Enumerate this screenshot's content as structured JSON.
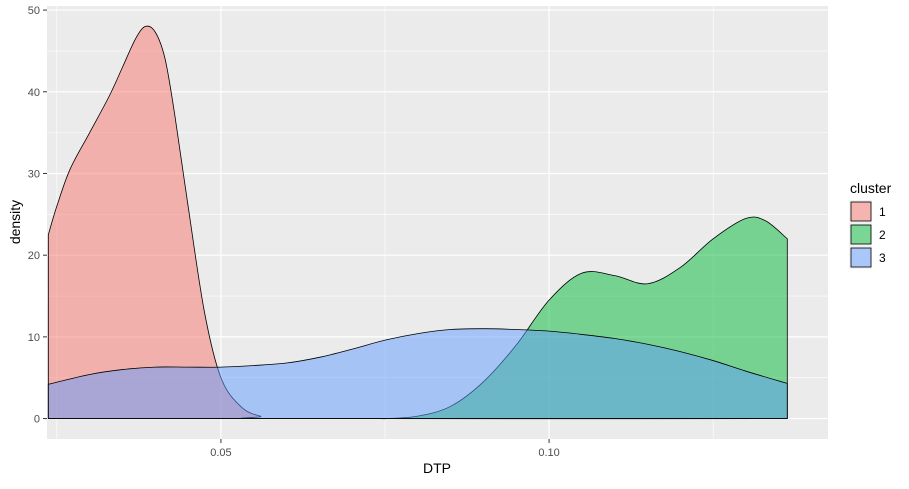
{
  "chart_data": {
    "type": "area",
    "chart_kind": "density",
    "title": "",
    "xlabel": "DTP",
    "ylabel": "density",
    "xlim": [
      0.0235,
      0.1425
    ],
    "ylim": [
      -2.5,
      50.5
    ],
    "x_ticks": [
      0.05,
      0.1
    ],
    "x_tick_labels": [
      "0.05",
      "0.10"
    ],
    "y_ticks": [
      0,
      10,
      20,
      30,
      40,
      50
    ],
    "y_tick_labels": [
      "0",
      "10",
      "20",
      "30",
      "40",
      "50"
    ],
    "grid": true,
    "legend": {
      "title": "cluster",
      "position": "right"
    },
    "series": [
      {
        "name": "1",
        "fill": "#F8766D",
        "points": [
          [
            0.0237,
            22.5
          ],
          [
            0.025,
            26
          ],
          [
            0.027,
            30.5
          ],
          [
            0.03,
            35
          ],
          [
            0.033,
            39.5
          ],
          [
            0.035,
            43
          ],
          [
            0.037,
            46.5
          ],
          [
            0.0385,
            48
          ],
          [
            0.04,
            47.3
          ],
          [
            0.0415,
            44
          ],
          [
            0.043,
            37
          ],
          [
            0.045,
            26
          ],
          [
            0.0475,
            13
          ],
          [
            0.05,
            5
          ],
          [
            0.053,
            1.5
          ],
          [
            0.056,
            0.3
          ],
          [
            0.06,
            0
          ],
          [
            0.1363,
            0
          ]
        ]
      },
      {
        "name": "2",
        "fill": "#00BA38",
        "points": [
          [
            0.0237,
            0
          ],
          [
            0.07,
            0
          ],
          [
            0.075,
            0
          ],
          [
            0.08,
            0.3
          ],
          [
            0.085,
            1.5
          ],
          [
            0.09,
            4.5
          ],
          [
            0.095,
            9
          ],
          [
            0.1,
            14.5
          ],
          [
            0.105,
            17.8
          ],
          [
            0.11,
            17.5
          ],
          [
            0.115,
            16.5
          ],
          [
            0.12,
            18.5
          ],
          [
            0.125,
            22
          ],
          [
            0.13,
            24.5
          ],
          [
            0.133,
            24.2
          ],
          [
            0.1363,
            22
          ]
        ]
      },
      {
        "name": "3",
        "fill": "#619CFF",
        "points": [
          [
            0.0237,
            4.2
          ],
          [
            0.03,
            5.4
          ],
          [
            0.035,
            6
          ],
          [
            0.04,
            6.3
          ],
          [
            0.045,
            6.3
          ],
          [
            0.05,
            6.3
          ],
          [
            0.055,
            6.5
          ],
          [
            0.06,
            6.8
          ],
          [
            0.065,
            7.5
          ],
          [
            0.07,
            8.5
          ],
          [
            0.075,
            9.6
          ],
          [
            0.08,
            10.4
          ],
          [
            0.085,
            10.9
          ],
          [
            0.09,
            11
          ],
          [
            0.095,
            10.9
          ],
          [
            0.1,
            10.7
          ],
          [
            0.105,
            10.3
          ],
          [
            0.11,
            9.8
          ],
          [
            0.115,
            9.1
          ],
          [
            0.12,
            8.2
          ],
          [
            0.125,
            7.1
          ],
          [
            0.13,
            5.8
          ],
          [
            0.1363,
            4.3
          ]
        ]
      }
    ]
  }
}
